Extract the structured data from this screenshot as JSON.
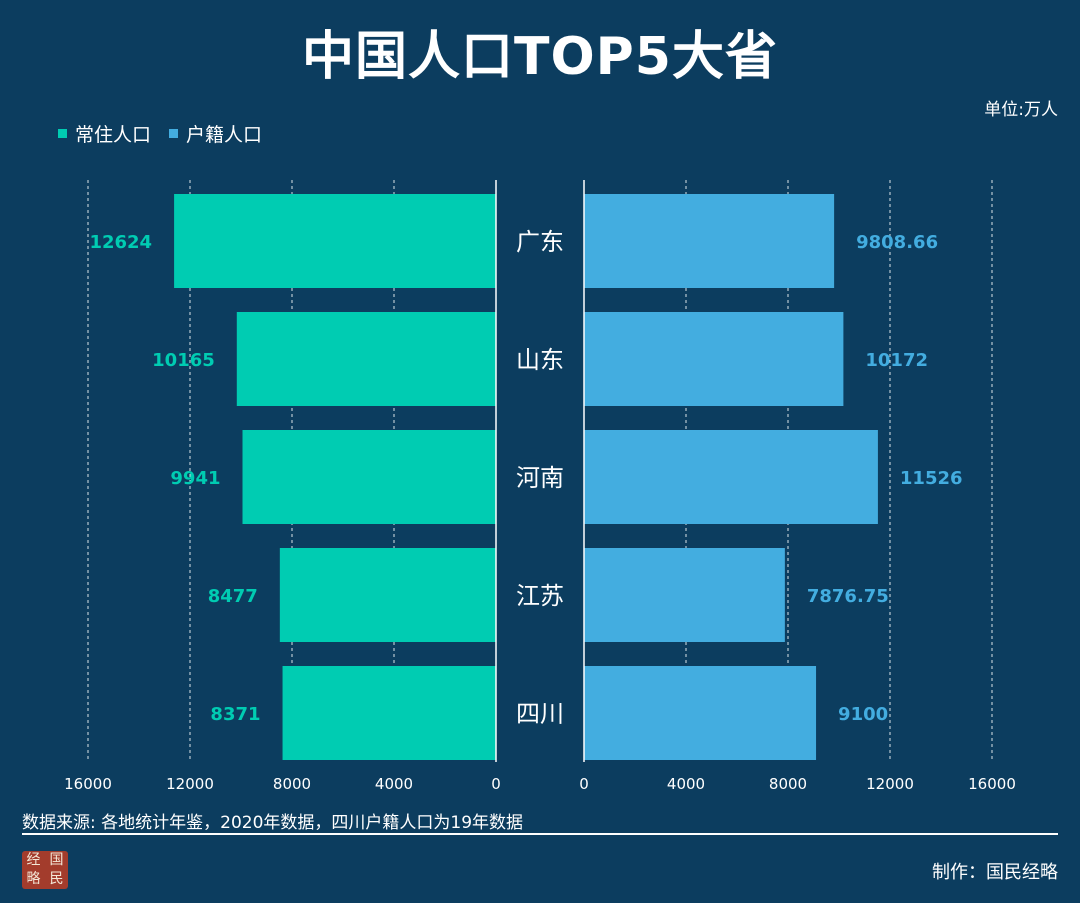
{
  "title": "中国人口TOP5大省",
  "unit": "单位:万人",
  "legend": [
    {
      "label": "常住人口",
      "color": "#00ccb2"
    },
    {
      "label": "户籍人口",
      "color": "#43ade0"
    }
  ],
  "chart_data": {
    "type": "bar",
    "orientation": "horizontal-butterfly",
    "title": "中国人口TOP5大省",
    "categories": [
      "广东",
      "山东",
      "河南",
      "江苏",
      "四川"
    ],
    "series": [
      {
        "name": "常住人口",
        "values": [
          12624,
          10165,
          9941,
          8477,
          8371
        ],
        "labels": [
          "12624",
          "10165",
          "9941",
          "8477",
          "8371"
        ],
        "color": "#00ccb2"
      },
      {
        "name": "户籍人口",
        "values": [
          9808.66,
          10172,
          11526,
          7876.75,
          9100
        ],
        "labels": [
          "9808.66",
          "10172",
          "11526",
          "7876.75",
          "9100"
        ],
        "color": "#43ade0"
      }
    ],
    "left_axis": {
      "range": [
        16000,
        0
      ],
      "ticks": [
        "16000",
        "12000",
        "8000",
        "4000",
        "0"
      ]
    },
    "right_axis": {
      "range": [
        0,
        16000
      ],
      "ticks": [
        "0",
        "4000",
        "8000",
        "12000",
        "16000"
      ]
    },
    "grid": true
  },
  "footer": {
    "source": "数据来源: 各地统计年鉴，2020年数据，四川户籍人口为19年数据",
    "credit": "制作：国民经略",
    "seal_chars": [
      "经",
      "国",
      "略",
      "民"
    ]
  }
}
